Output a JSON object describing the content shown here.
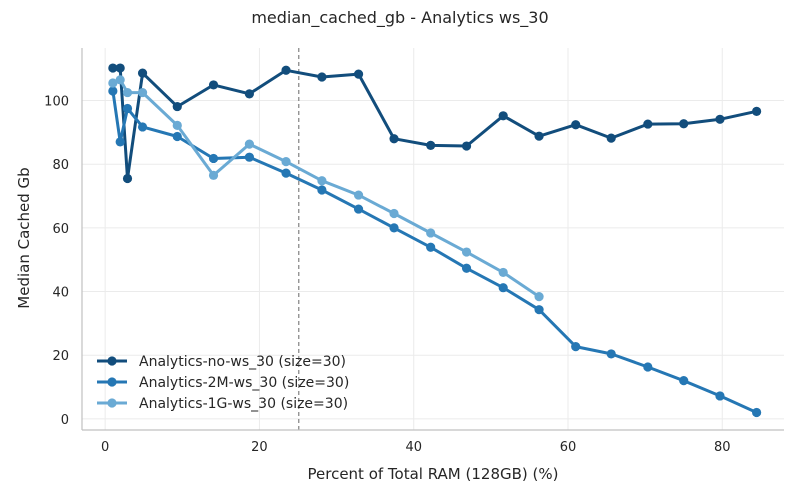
{
  "chart_data": {
    "type": "line",
    "title": "median_cached_gb - Analytics ws_30",
    "xlabel": "Percent of Total RAM (128GB) (%)",
    "ylabel": "Median Cached Gb",
    "xlim": [
      -3,
      88
    ],
    "ylim": [
      -3.5,
      116.5
    ],
    "xticks": [
      0,
      20,
      40,
      60,
      80
    ],
    "yticks": [
      0,
      20,
      40,
      60,
      80,
      100
    ],
    "grid": true,
    "legend_position": "lower-left",
    "reference_line": {
      "x": 25.1,
      "style": "dashed",
      "color": "#808080"
    },
    "series": [
      {
        "name": "Analytics-no-ws_30 (size=30)",
        "color": "#124d7c",
        "x": [
          1.0,
          1.95,
          2.9,
          4.85,
          9.35,
          14.05,
          18.7,
          23.45,
          28.1,
          32.85,
          37.45,
          42.2,
          46.85,
          51.6,
          56.25,
          61.0,
          65.6,
          70.35,
          75.0,
          79.7,
          84.45
        ],
        "y": [
          110.2,
          110.2,
          75.5,
          108.6,
          98.1,
          104.9,
          102.1,
          109.5,
          107.4,
          108.3,
          88.0,
          85.9,
          85.7,
          95.2,
          88.8,
          92.4,
          88.2,
          92.6,
          92.7,
          94.1,
          96.6
        ]
      },
      {
        "name": "Analytics-2M-ws_30 (size=30)",
        "color": "#2577b4",
        "x": [
          1.0,
          1.95,
          2.9,
          4.85,
          9.35,
          14.05,
          18.7,
          23.45,
          28.1,
          32.85,
          37.45,
          42.2,
          46.85,
          51.6,
          56.25,
          61.0,
          65.6,
          70.35,
          75.0,
          79.7,
          84.45
        ],
        "y": [
          103.0,
          87.0,
          97.5,
          91.7,
          88.7,
          81.8,
          82.2,
          77.2,
          71.9,
          65.9,
          60.0,
          53.9,
          47.3,
          41.2,
          34.3,
          22.7,
          20.4,
          16.3,
          12.0,
          7.2,
          2.0
        ]
      },
      {
        "name": "Analytics-1G-ws_30 (size=30)",
        "color": "#6aaad4",
        "x": [
          1.0,
          1.95,
          2.9,
          4.85,
          9.35,
          14.05,
          18.7,
          23.45,
          28.1,
          32.85,
          37.45,
          42.2,
          46.85,
          51.6,
          56.25
        ],
        "y": [
          105.5,
          106.5,
          102.5,
          102.5,
          92.2,
          76.5,
          86.3,
          80.8,
          74.8,
          70.3,
          64.5,
          58.4,
          52.4,
          46.0,
          38.4
        ]
      }
    ]
  }
}
